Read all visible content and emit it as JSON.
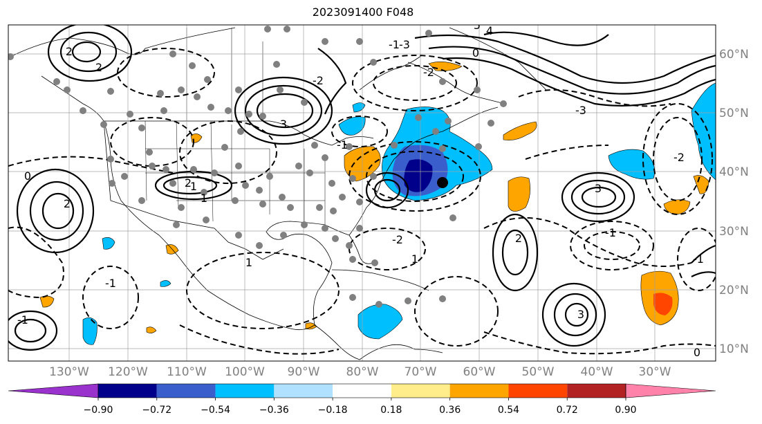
{
  "title": "2023091400 F048",
  "map": {
    "latitude_labels": [
      "60°N",
      "50°N",
      "40°N",
      "30°N",
      "20°N",
      "10°N"
    ],
    "longitude_labels": [
      "130°W",
      "120°W",
      "110°W",
      "100°W",
      "90°W",
      "80°W",
      "70°W",
      "60°W",
      "50°W",
      "40°W",
      "30°W"
    ],
    "contour_labels": [
      "2",
      "3",
      "2",
      "2",
      "1",
      "-2",
      "-3",
      "3",
      "2",
      "-1",
      "-2",
      "-1",
      "1",
      "-1",
      "0",
      "-1",
      "3",
      "-2",
      "1",
      "-2",
      "-1",
      "1",
      "-1",
      "0",
      "4",
      "5",
      "-3",
      "2",
      "0"
    ]
  },
  "colorbar": {
    "ticks": [
      "−0.90",
      "−0.72",
      "−0.54",
      "−0.36",
      "−0.18",
      "0.18",
      "0.36",
      "0.54",
      "0.72",
      "0.90"
    ],
    "colors": [
      "#9a32cd",
      "#00008b",
      "#3a5fcd",
      "#00bfff",
      "#b0e2ff",
      "#ffffff",
      "#ffec8b",
      "#ffa500",
      "#ff4500",
      "#b22222",
      "#ff82ab"
    ]
  }
}
